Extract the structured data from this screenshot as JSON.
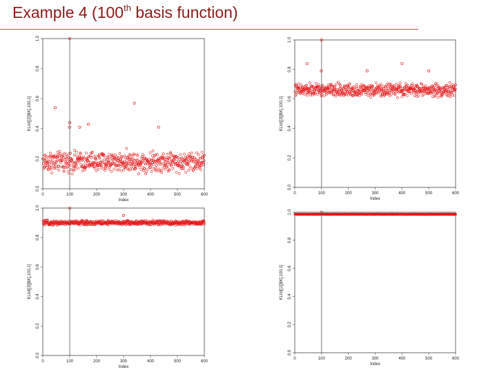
{
  "slide": {
    "title_prefix": "Example 4 (100",
    "title_sup": "th",
    "title_suffix": " basis function)"
  },
  "colors": {
    "points": "#e41a1c",
    "vline": "#555555",
    "title": "#8b1a1a"
  },
  "chart_data": [
    {
      "type": "scatter",
      "ylabel": "KList[[2]]$K[,100,1]",
      "xlabel": "Index",
      "xlim": [
        0,
        600
      ],
      "ylim": [
        0.0,
        1.0
      ],
      "xticks": [
        "0",
        "100",
        "200",
        "300",
        "400",
        "500",
        "600"
      ],
      "yticks": [
        "0.0",
        "0.2",
        "0.4",
        "0.6",
        "0.8",
        "1.0"
      ],
      "n": 600,
      "vline": 100,
      "base": 0.18,
      "spread": 0.05,
      "noise": 0.04,
      "outliers": [
        [
          100,
          1.0
        ],
        [
          46,
          0.54
        ],
        [
          99,
          0.41
        ],
        [
          100,
          0.44
        ],
        [
          137,
          0.41
        ],
        [
          170,
          0.43
        ],
        [
          340,
          0.57
        ],
        [
          430,
          0.41
        ]
      ]
    },
    {
      "type": "scatter",
      "ylabel": "KList[[3]]$K[,100,1]",
      "xlabel": "Index",
      "xlim": [
        0,
        600
      ],
      "ylim": [
        0.0,
        1.0
      ],
      "xticks": [
        "0",
        "100",
        "200",
        "300",
        "400",
        "500",
        "600"
      ],
      "yticks": [
        "0.0",
        "0.2",
        "0.4",
        "0.6",
        "0.8",
        "1.0"
      ],
      "n": 600,
      "vline": 100,
      "base": 0.66,
      "spread": 0.03,
      "noise": 0.03,
      "outliers": [
        [
          100,
          1.0
        ],
        [
          46,
          0.84
        ],
        [
          99,
          0.79
        ],
        [
          270,
          0.79
        ],
        [
          400,
          0.84
        ],
        [
          500,
          0.79
        ]
      ]
    },
    {
      "type": "scatter",
      "ylabel": "KLIst[[3]]$K[,100,1]",
      "xlabel": "Index",
      "xlim": [
        0,
        600
      ],
      "ylim": [
        0.0,
        1.0
      ],
      "xticks": [
        "0",
        "100",
        "200",
        "300",
        "400",
        "500",
        "600"
      ],
      "yticks": [
        "0.0",
        "0.2",
        "0.4",
        "0.6",
        "0.8",
        "1.0"
      ],
      "n": 600,
      "vline": 100,
      "base": 0.9,
      "spread": 0.01,
      "noise": 0.012,
      "outliers": [
        [
          100,
          1.0
        ],
        [
          300,
          0.95
        ]
      ]
    },
    {
      "type": "scatter",
      "ylabel": "KLIst[[1]]$K[,100,1]",
      "xlabel": "Index",
      "xlim": [
        0,
        600
      ],
      "ylim": [
        0.0,
        1.0
      ],
      "xticks": [
        "0",
        "100",
        "200",
        "300",
        "400",
        "500",
        "600"
      ],
      "yticks": [
        "0.0",
        "0.2",
        "0.4",
        "0.6",
        "0.8",
        "1.0"
      ],
      "n": 600,
      "vline": 100,
      "base": 0.985,
      "spread": 0.0,
      "noise": 0.002,
      "outliers": [
        [
          100,
          1.0
        ]
      ]
    }
  ]
}
